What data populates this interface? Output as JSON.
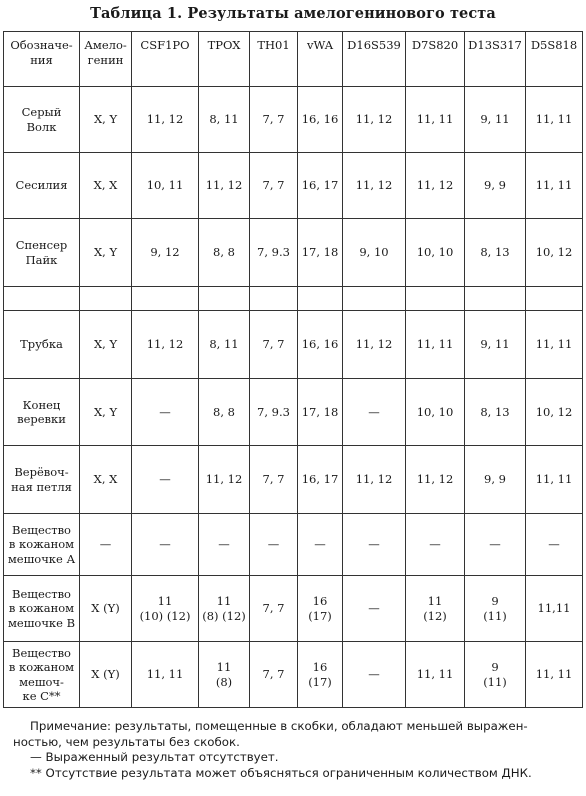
{
  "title": "Таблица 1. Результаты амелогенинового теста",
  "table": {
    "headers": [
      "Обозначе-\nния",
      "Амело-\nгенин",
      "CSF1PO",
      "TPOX",
      "TH01",
      "vWA",
      "D16S539",
      "D7S820",
      "D13S317",
      "D5S818"
    ],
    "rows": [
      [
        "Серый\nВолк",
        "X, Y",
        "11, 12",
        "8, 11",
        "7, 7",
        "16, 16",
        "11, 12",
        "11, 11",
        "9, 11",
        "11, 11"
      ],
      [
        "Сесилия",
        "X, X",
        "10, 11",
        "11, 12",
        "7, 7",
        "16, 17",
        "11, 12",
        "11, 12",
        "9, 9",
        "11, 11"
      ],
      [
        "Спенсер\nПайк",
        "X, Y",
        "9, 12",
        "8, 8",
        "7, 9.3",
        "17, 18",
        "9, 10",
        "10, 10",
        "8, 13",
        "10, 12"
      ],
      [
        "",
        "",
        "",
        "",
        "",
        "",
        "",
        "",
        "",
        ""
      ],
      [
        "Трубка",
        "X, Y",
        "11, 12",
        "8, 11",
        "7, 7",
        "16, 16",
        "11, 12",
        "11, 11",
        "9, 11",
        "11, 11"
      ],
      [
        "Конец\nверевки",
        "X, Y",
        "—",
        "8, 8",
        "7, 9.3",
        "17, 18",
        "—",
        "10, 10",
        "8, 13",
        "10, 12"
      ],
      [
        "Верёвоч-\nная петля",
        "X, X",
        "—",
        "11, 12",
        "7, 7",
        "16, 17",
        "11, 12",
        "11, 12",
        "9, 9",
        "11, 11"
      ],
      [
        "Вещество\nв кожаном\nмешочке А",
        "—",
        "—",
        "—",
        "—",
        "—",
        "—",
        "—",
        "—",
        "—"
      ],
      [
        "Вещество\nв кожаном\nмешочке В",
        "X (Y)",
        "11\n(10) (12)",
        "11\n(8) (12)",
        "7, 7",
        "16\n(17)",
        "—",
        "11\n(12)",
        "9\n(11)",
        "11,11"
      ],
      [
        "Вещество\nв кожаном\nмешоч-\nке С**",
        "X (Y)",
        "11, 11",
        "11\n(8)",
        "7, 7",
        "16\n(17)",
        "—",
        "11, 11",
        "9\n(11)",
        "11, 11"
      ]
    ]
  },
  "notes": {
    "line1": "Примечание: результаты, помещенные в скобки, обладают меньшей выражен-",
    "line2": "ностью, чем результаты без скобок.",
    "line3": "— Выраженный результат отсутствует.",
    "line4": "** Отсутствие результата может объясняться ограниченным количеством ДНК."
  }
}
